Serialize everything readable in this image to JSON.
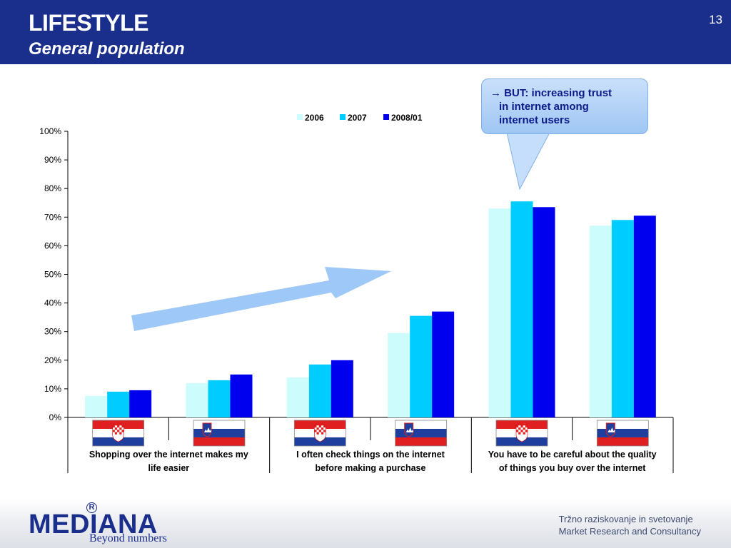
{
  "header": {
    "title": "LIFESTYLE",
    "subtitle": "General population",
    "page_number": "13"
  },
  "callout": {
    "line1": "BUT: increasing  trust",
    "line2": "in internet among",
    "line3": "internet users"
  },
  "footer": {
    "logo": "MEDIANA",
    "tagline": "Beyond numbers",
    "company_line1": "Tržno raziskovanje in svetovanje",
    "company_line2": "Market Research and Consultancy"
  },
  "colors": {
    "header_bg": "#1a2e8c",
    "series": [
      "#ccfcfc",
      "#00ccff",
      "#0000ee"
    ],
    "arrow": "#9dc8f8"
  },
  "chart_data": {
    "type": "bar",
    "title": "",
    "ylim": [
      0,
      100
    ],
    "yticks": [
      "0%",
      "10%",
      "20%",
      "30%",
      "40%",
      "50%",
      "60%",
      "70%",
      "80%",
      "90%",
      "100%"
    ],
    "legend": [
      "2006",
      "2007",
      "2008/01"
    ],
    "legend_position": "top",
    "grid": false,
    "groups": [
      {
        "label": "Shopping over the internet makes my life easier",
        "countries": [
          "croatia",
          "slovenia"
        ]
      },
      {
        "label": "I often check things on the internet before making a purchase",
        "countries": [
          "croatia",
          "slovenia"
        ]
      },
      {
        "label": "You have to be careful about the quality of things you buy over the internet",
        "countries": [
          "croatia",
          "slovenia"
        ]
      }
    ],
    "group_label_lines": [
      [
        "Shopping over the internet makes my",
        "life easier"
      ],
      [
        "I often check things on the internet",
        "before making a purchase"
      ],
      [
        "You have to be careful about the quality",
        "of things you buy over the internet"
      ]
    ],
    "categories": [
      "Croatia",
      "Slovenia",
      "Croatia",
      "Slovenia",
      "Croatia",
      "Slovenia"
    ],
    "series": [
      {
        "name": "2006",
        "values": [
          7.5,
          12,
          14,
          29.5,
          73,
          67
        ]
      },
      {
        "name": "2007",
        "values": [
          9,
          13,
          18.5,
          35.5,
          75.5,
          69
        ]
      },
      {
        "name": "2008/01",
        "values": [
          9.5,
          15,
          20,
          37,
          73.5,
          70.5
        ]
      }
    ]
  }
}
